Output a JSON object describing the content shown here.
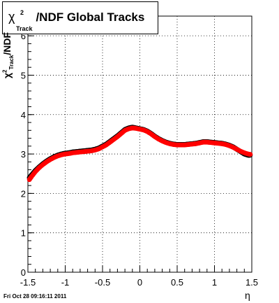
{
  "chart_data": {
    "type": "scatter",
    "title": "χ²Track/NDF  Global Tracks",
    "title_parts": {
      "symbol": "χ",
      "sup": "2",
      "sub": "Track",
      "rest": "/NDF  Global Tracks"
    },
    "ylabel": "χ²Track/NDF",
    "ylabel_parts": {
      "symbol": "χ",
      "sup": "2",
      "sub": "Track",
      "rest": "/NDF"
    },
    "xlabel": "η",
    "xlim": [
      -1.5,
      1.5
    ],
    "ylim": [
      0,
      6.5
    ],
    "x_ticks": [
      -1.5,
      -1,
      -0.5,
      0,
      0.5,
      1,
      1.5
    ],
    "x_tick_labels": [
      "-1.5",
      "-1",
      "-0.5",
      "0",
      "0.5",
      "1",
      "1.5"
    ],
    "y_ticks": [
      0,
      1,
      2,
      3,
      4,
      5,
      6
    ],
    "y_tick_labels": [
      "0",
      "1",
      "2",
      "3",
      "4",
      "5",
      "6"
    ],
    "grid": true,
    "series": [
      {
        "color": "#000000",
        "x": [
          -1.48,
          -1.45,
          -1.4,
          -1.35,
          -1.3,
          -1.25,
          -1.2,
          -1.15,
          -1.1,
          -1.05,
          -1.0,
          -0.95,
          -0.9,
          -0.85,
          -0.8,
          -0.75,
          -0.7,
          -0.65,
          -0.6,
          -0.55,
          -0.5,
          -0.45,
          -0.4,
          -0.35,
          -0.3,
          -0.25,
          -0.2,
          -0.15,
          -0.1,
          -0.05,
          0.0,
          0.05,
          0.1,
          0.15,
          0.2,
          0.25,
          0.3,
          0.35,
          0.4,
          0.45,
          0.5,
          0.55,
          0.6,
          0.65,
          0.7,
          0.75,
          0.8,
          0.85,
          0.9,
          0.95,
          1.0,
          1.05,
          1.1,
          1.15,
          1.2,
          1.25,
          1.3,
          1.35,
          1.4,
          1.45,
          1.48
        ],
        "y": [
          2.4,
          2.47,
          2.58,
          2.67,
          2.75,
          2.82,
          2.88,
          2.93,
          2.97,
          3.0,
          3.02,
          3.03,
          3.05,
          3.06,
          3.07,
          3.08,
          3.09,
          3.1,
          3.12,
          3.15,
          3.2,
          3.25,
          3.32,
          3.39,
          3.46,
          3.54,
          3.62,
          3.66,
          3.68,
          3.66,
          3.64,
          3.62,
          3.58,
          3.52,
          3.45,
          3.39,
          3.34,
          3.3,
          3.27,
          3.25,
          3.24,
          3.24,
          3.24,
          3.25,
          3.26,
          3.27,
          3.29,
          3.31,
          3.31,
          3.3,
          3.29,
          3.28,
          3.27,
          3.25,
          3.22,
          3.18,
          3.12,
          3.06,
          3.0,
          2.97,
          2.97
        ]
      },
      {
        "color": "#ff0000",
        "x": [
          -1.48,
          -1.45,
          -1.4,
          -1.35,
          -1.3,
          -1.25,
          -1.2,
          -1.15,
          -1.1,
          -1.05,
          -1.0,
          -0.95,
          -0.9,
          -0.85,
          -0.8,
          -0.75,
          -0.7,
          -0.65,
          -0.6,
          -0.55,
          -0.5,
          -0.45,
          -0.4,
          -0.35,
          -0.3,
          -0.25,
          -0.2,
          -0.15,
          -0.1,
          -0.05,
          0.0,
          0.05,
          0.1,
          0.15,
          0.2,
          0.25,
          0.3,
          0.35,
          0.4,
          0.45,
          0.5,
          0.55,
          0.6,
          0.65,
          0.7,
          0.75,
          0.8,
          0.85,
          0.9,
          0.95,
          1.0,
          1.05,
          1.1,
          1.15,
          1.2,
          1.25,
          1.3,
          1.35,
          1.4,
          1.45,
          1.48
        ],
        "y": [
          2.35,
          2.43,
          2.55,
          2.65,
          2.73,
          2.8,
          2.86,
          2.91,
          2.95,
          2.98,
          3.0,
          3.01,
          3.03,
          3.04,
          3.05,
          3.06,
          3.07,
          3.08,
          3.1,
          3.13,
          3.18,
          3.23,
          3.3,
          3.37,
          3.44,
          3.52,
          3.6,
          3.64,
          3.66,
          3.65,
          3.63,
          3.61,
          3.57,
          3.51,
          3.44,
          3.38,
          3.33,
          3.29,
          3.26,
          3.24,
          3.23,
          3.23,
          3.23,
          3.24,
          3.25,
          3.26,
          3.28,
          3.3,
          3.3,
          3.29,
          3.28,
          3.27,
          3.26,
          3.24,
          3.21,
          3.17,
          3.12,
          3.07,
          3.03,
          3.0,
          2.99
        ]
      }
    ]
  },
  "footer": {
    "timestamp": "Fri Oct 28 09:16:11 2011"
  }
}
